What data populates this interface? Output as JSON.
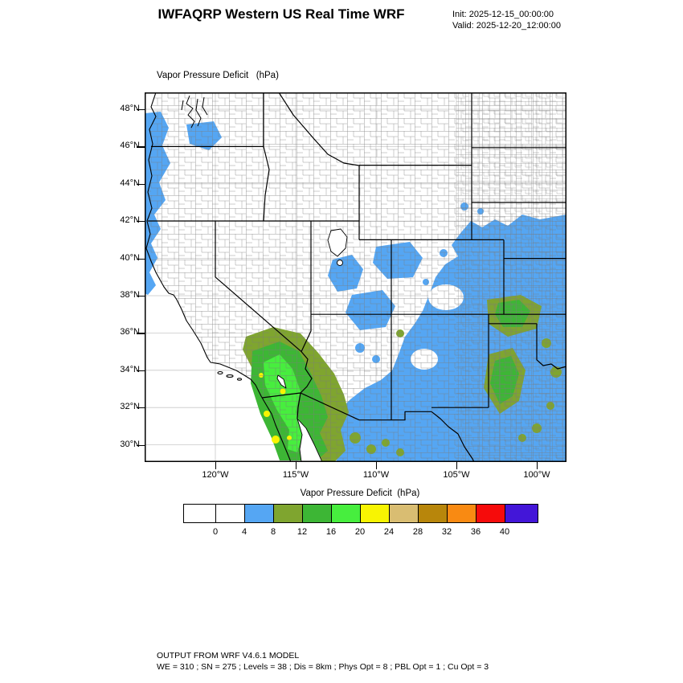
{
  "header": {
    "title": "IWFAQRP Western US Real Time WRF",
    "init": "Init: 2025-12-15_00:00:00",
    "valid": "Valid: 2025-12-20_12:00:00"
  },
  "plot": {
    "field_title": "Vapor Pressure Deficit   (hPa)",
    "lat_labels": [
      "48°N",
      "46°N",
      "44°N",
      "42°N",
      "40°N",
      "38°N",
      "36°N",
      "34°N",
      "32°N",
      "30°N"
    ],
    "lon_labels": [
      "120°W",
      "115°W",
      "110°W",
      "105°W",
      "100°W"
    ]
  },
  "colorbar": {
    "title": "Vapor Pressure Deficit  (hPa)",
    "tick_labels": [
      "0",
      "4",
      "8",
      "12",
      "16",
      "20",
      "24",
      "28",
      "32",
      "36",
      "40"
    ],
    "colors": [
      "#ffffff",
      "#ffffff",
      "#55a6f3",
      "#7fa52f",
      "#3db635",
      "#47ee3e",
      "#f8f402",
      "#d9bd72",
      "#b8860b",
      "#f98a12",
      "#f60b0b",
      "#4316d8"
    ]
  },
  "footer": {
    "line1": "OUTPUT FROM WRF V4.6.1 MODEL",
    "line2": "WE = 310 ; SN = 275 ; Levels = 38 ; Dis = 8km ; Phys Opt = 8 ; PBL Opt = 1 ; Cu Opt = 3"
  }
}
